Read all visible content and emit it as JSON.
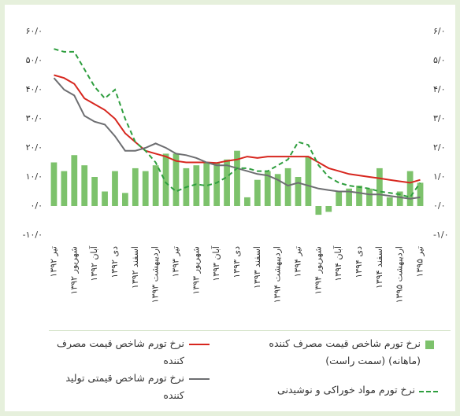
{
  "chart_data": {
    "type": "bar_line",
    "categories": [
      "تیر ۱۳۹۲",
      null,
      "شهریور ۱۳۹۲",
      null,
      "آبان ۱۳۹۲",
      null,
      "دی ۱۳۹۲",
      null,
      "اسفند ۱۳۹۲",
      null,
      "اردیبهشت ۱۳۹۳",
      null,
      "تیر ۱۳۹۳",
      null,
      "شهریور ۱۳۹۳",
      null,
      "آبان ۱۳۹۳",
      null,
      "دی ۱۳۹۳",
      null,
      "اسفند ۱۳۹۳",
      null,
      "اردیبهشت ۱۳۹۴",
      null,
      "تیر ۱۳۹۴",
      null,
      "شهریور ۱۳۹۴",
      null,
      "آبان ۱۳۹۴",
      null,
      "دی ۱۳۹۴",
      null,
      "اسفند ۱۳۹۴",
      null,
      "اردیبهشت ۱۳۹۵",
      null,
      "تیر ۱۳۹۵"
    ],
    "series": [
      {
        "name": "نرخ تورم شاخص قیمت مصرف کننده (ماهانه) (سمت راست)",
        "color": "#7dc26c",
        "type": "bar",
        "axis": "y2",
        "values": [
          1.5,
          1.2,
          1.75,
          1.4,
          1.0,
          0.5,
          1.2,
          0.45,
          1.3,
          1.2,
          1.4,
          1.8,
          1.8,
          1.3,
          1.4,
          1.5,
          1.5,
          1.6,
          1.9,
          0.3,
          0.9,
          1.2,
          1.1,
          1.3,
          1.0,
          1.7,
          -0.3,
          -0.2,
          0.5,
          0.6,
          0.7,
          0.6,
          1.3,
          0.3,
          0.5,
          1.2,
          0.8
        ]
      },
      {
        "name": "نرخ تورم شاخص قیمت مصرف کننده",
        "color": "#d7261e",
        "type": "line",
        "values": [
          45,
          44,
          42,
          37,
          35,
          33,
          30,
          25,
          22,
          19,
          18,
          17,
          15.5,
          15,
          15,
          15,
          14.8,
          15.5,
          16,
          17,
          16.5,
          17,
          17,
          17,
          17,
          17,
          15,
          13,
          12,
          11,
          10.5,
          10,
          9.5,
          9,
          8.5,
          8,
          9
        ]
      },
      {
        "name": "نرخ تورم شاخص قیمتی تولید کننده",
        "color": "#6d6e71",
        "type": "line",
        "values": [
          44,
          40,
          38,
          31,
          29,
          28,
          24,
          19,
          19,
          20,
          21.5,
          20,
          18,
          17.5,
          16.5,
          15,
          14,
          14,
          13,
          12,
          11,
          10.5,
          9,
          7,
          8,
          7,
          6,
          5.5,
          5,
          5,
          4.5,
          4,
          4,
          3.5,
          3,
          2.5,
          3
        ]
      },
      {
        "name": "نرخ تورم مواد خوراکی و نوشیدنی",
        "color": "#2e9e3e",
        "type": "line",
        "dash": true,
        "values": [
          54,
          53,
          53,
          47,
          41,
          37,
          40,
          30,
          22,
          19,
          15,
          8,
          5,
          6.5,
          7.5,
          7,
          8,
          10,
          13,
          13,
          12,
          12,
          14,
          16,
          22,
          21,
          14,
          10,
          8,
          7,
          6.5,
          6,
          5,
          4.5,
          4,
          3,
          8
        ]
      }
    ],
    "ylim": [
      -10,
      60
    ],
    "yticks": [
      {
        "value": -10,
        "label": "-۱۰/۰"
      },
      {
        "value": 0,
        "label": "۰/۰"
      },
      {
        "value": 10,
        "label": "۱۰/۰"
      },
      {
        "value": 20,
        "label": "۲۰/۰"
      },
      {
        "value": 30,
        "label": "۳۰/۰"
      },
      {
        "value": 40,
        "label": "۴۰/۰"
      },
      {
        "value": 50,
        "label": "۵۰/۰"
      },
      {
        "value": 60,
        "label": "۶۰/۰"
      }
    ],
    "y2lim": [
      -1,
      6
    ],
    "y2ticks": [
      {
        "value": -1,
        "label": "-۱/۰"
      },
      {
        "value": 0,
        "label": "۰/۰"
      },
      {
        "value": 1,
        "label": "۱/۰"
      },
      {
        "value": 2,
        "label": "۲/۰"
      },
      {
        "value": 3,
        "label": "۳/۰"
      },
      {
        "value": 4,
        "label": "۴/۰"
      },
      {
        "value": 5,
        "label": "۵/۰"
      },
      {
        "value": 6,
        "label": "۶/۰"
      }
    ]
  }
}
